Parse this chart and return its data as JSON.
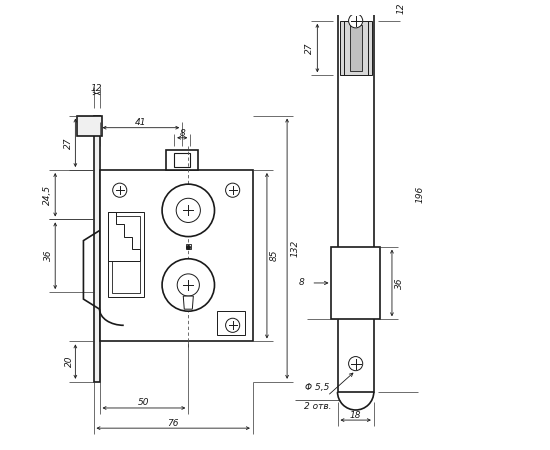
{
  "bg_color": "#ffffff",
  "lc": "#1a1a1a",
  "fig_w": 5.5,
  "fig_h": 4.5,
  "dpi": 100,
  "ann": {
    "12t": "12",
    "27": "27",
    "245": "24,5",
    "36l": "36",
    "20": "20",
    "41": "41",
    "8t": "8",
    "85": "85",
    "132": "132",
    "50": "50",
    "76": "76",
    "12r": "12",
    "27r": "27",
    "8r": "8",
    "36r": "36",
    "196": "196",
    "18": "18",
    "phi": "Φ 5,5",
    "otv": "2 отв."
  }
}
